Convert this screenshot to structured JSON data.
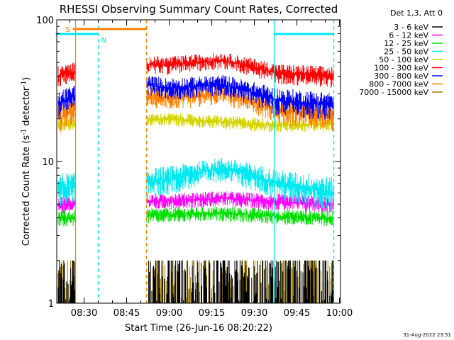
{
  "chart_data": {
    "type": "line",
    "title": "RHESSI Observing Summary Count Rates, Corrected",
    "xlabel": "Start Time (26-Jun-16 08:20:22)",
    "ylabel_main": "Corrected Count Rate (s",
    "ylabel_sup": "-1",
    "ylabel_mid": " detector",
    "ylabel_end": ")",
    "y_scale": "log",
    "ylim": [
      1,
      100
    ],
    "xlim_minutes": [
      "08:20:22",
      "10:00:22"
    ],
    "x_ticks": [
      "08:30",
      "08:45",
      "09:00",
      "09:15",
      "09:30",
      "09:45",
      "10:00"
    ],
    "y_ticks": [
      "1",
      "10",
      "100"
    ],
    "legend_header": "Det 1,3, Att 0",
    "footer_timestamp": "31-Aug-2022 23:51",
    "flags": [
      {
        "label": "S",
        "color": "#ff8000",
        "start": "08:26",
        "end": "08:52"
      },
      {
        "label": "N",
        "color": "#00e8f0",
        "start": "08:20",
        "end": "08:35"
      },
      {
        "label": "",
        "color": "#00e8f0",
        "start": "09:37",
        "end": "09:58"
      }
    ],
    "gaps": [
      {
        "start": "08:27",
        "end": "08:52"
      }
    ],
    "vlines": [
      {
        "time": "08:27",
        "color": "#ff8000",
        "style": "solid"
      },
      {
        "time": "08:35",
        "color": "#00e8f0",
        "style": "dashed"
      },
      {
        "time": "08:52",
        "color": "#ff8000",
        "style": "dashed"
      },
      {
        "time": "09:37",
        "color": "#00e8f0",
        "style": "solid"
      },
      {
        "time": "09:58",
        "color": "#00e8f0",
        "style": "dashed"
      }
    ],
    "series": [
      {
        "name": "3 - 6 keV",
        "color": "#000000",
        "range": [
          1.0,
          2.0
        ],
        "note": "bursty"
      },
      {
        "name": "6 - 12 keV",
        "color": "#ff00ff",
        "range": [
          4.0,
          6.0
        ],
        "values": [
          5.0,
          5.0,
          5.3,
          5.5,
          5.2,
          5.0
        ]
      },
      {
        "name": "12 - 25 keV",
        "color": "#00e000",
        "range": [
          3.0,
          4.5
        ],
        "values": [
          4.0,
          4.0,
          4.2,
          4.3,
          4.1,
          4.0
        ]
      },
      {
        "name": "25 - 50 keV",
        "color": "#00e8f0",
        "range": [
          5.0,
          10.0
        ],
        "values": [
          6.5,
          6.8,
          7.5,
          9.0,
          7.0,
          6.0
        ]
      },
      {
        "name": "50 - 100 keV",
        "color": "#d4d400",
        "range": [
          16.0,
          22.0
        ],
        "values": [
          18.5,
          19.0,
          20.0,
          19.0,
          18.0,
          18.5
        ]
      },
      {
        "name": "100 - 300 keV",
        "color": "#ff0000",
        "range": [
          35.0,
          55.0
        ],
        "values": [
          40.0,
          50.0,
          48.0,
          52.0,
          42.0,
          40.0
        ]
      },
      {
        "name": "300 - 800 keV",
        "color": "#0000ff",
        "range": [
          23.0,
          40.0
        ],
        "values": [
          25.0,
          38.0,
          33.0,
          35.0,
          27.0,
          25.0
        ]
      },
      {
        "name": "800 - 7000 keV",
        "color": "#ff8000",
        "range": [
          18.0,
          32.0
        ],
        "values": [
          20.0,
          30.0,
          28.0,
          30.0,
          23.0,
          21.0
        ]
      },
      {
        "name": "7000 - 15000 keV",
        "color": "#a08000",
        "range": [
          1.0,
          2.0
        ],
        "note": "bursty"
      }
    ]
  }
}
